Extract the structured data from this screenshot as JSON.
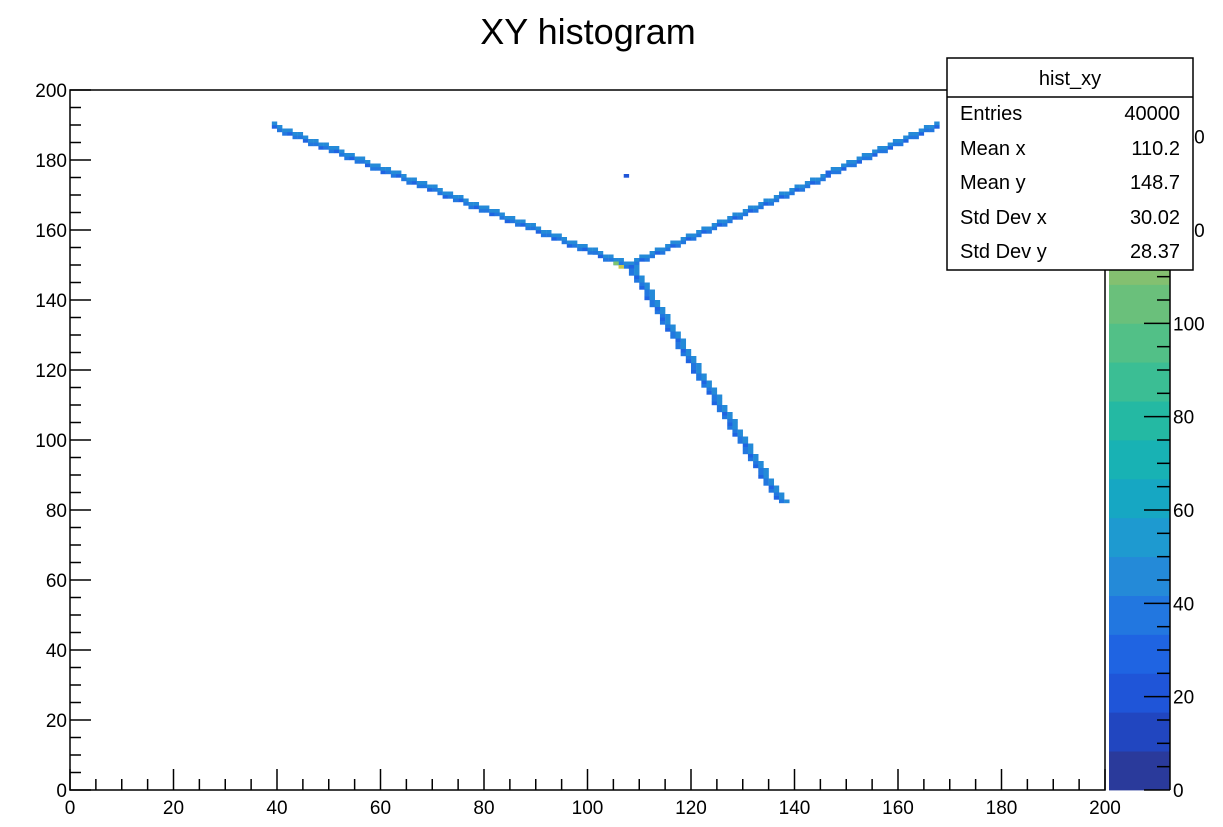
{
  "chart_data": {
    "type": "heatmap",
    "title": "XY histogram",
    "xlabel": "",
    "ylabel": "",
    "xlim": [
      0,
      200
    ],
    "ylim": [
      0,
      200
    ],
    "zlim": [
      0,
      150
    ],
    "x_ticks": [
      "0",
      "20",
      "40",
      "60",
      "80",
      "100",
      "120",
      "140",
      "160",
      "180",
      "200"
    ],
    "y_ticks": [
      "0",
      "20",
      "40",
      "60",
      "80",
      "100",
      "120",
      "140",
      "160",
      "180",
      "200"
    ],
    "z_ticks": [
      "0",
      "20",
      "40",
      "60",
      "80",
      "100",
      "120",
      "140"
    ],
    "palette": [
      "#2a3a9b",
      "#2146c0",
      "#1f55d8",
      "#1f64e2",
      "#2277e0",
      "#248ad8",
      "#1e9ad0",
      "#16a7c3",
      "#18b2b4",
      "#24b9a3",
      "#3bbe94",
      "#52c087",
      "#6ac07b",
      "#84c070",
      "#9fbe65",
      "#b8ba5c",
      "#cdb556",
      "#dcae53"
    ],
    "tracks": [
      {
        "name": "track-upper-left",
        "x_start": 39.5,
        "y_start": 189.0,
        "x_end": 108.0,
        "y_end": 149.0,
        "peak": "#44c290"
      },
      {
        "name": "track-upper-right",
        "x_start": 108.0,
        "y_start": 149.0,
        "x_end": 167.5,
        "y_end": 189.5,
        "peak": "#2277e0"
      },
      {
        "name": "track-lower",
        "x_start": 108.0,
        "y_start": 149.0,
        "x_end": 137.0,
        "y_end": 82.0,
        "peak": "#2277e0"
      }
    ],
    "hot_spots": [
      {
        "x": 106.5,
        "y": 149.5,
        "color": "#c9c84a"
      },
      {
        "x": 105.5,
        "y": 150.0,
        "color": "#7ec46f"
      },
      {
        "x": 101.5,
        "y": 153.5,
        "color": "#2277e0"
      }
    ],
    "isolated_point": {
      "x": 107.5,
      "y": 175.5
    },
    "bump": {
      "x": 146.5,
      "y": 176.0
    },
    "stats_box": {
      "title": "hist_xy",
      "rows": [
        {
          "label": "Entries",
          "value": "40000"
        },
        {
          "label": "Mean x",
          "value": "110.2"
        },
        {
          "label": "Mean y",
          "value": "148.7"
        },
        {
          "label": "Std Dev x",
          "value": "30.02"
        },
        {
          "label": "Std Dev y",
          "value": "28.37"
        }
      ]
    }
  }
}
